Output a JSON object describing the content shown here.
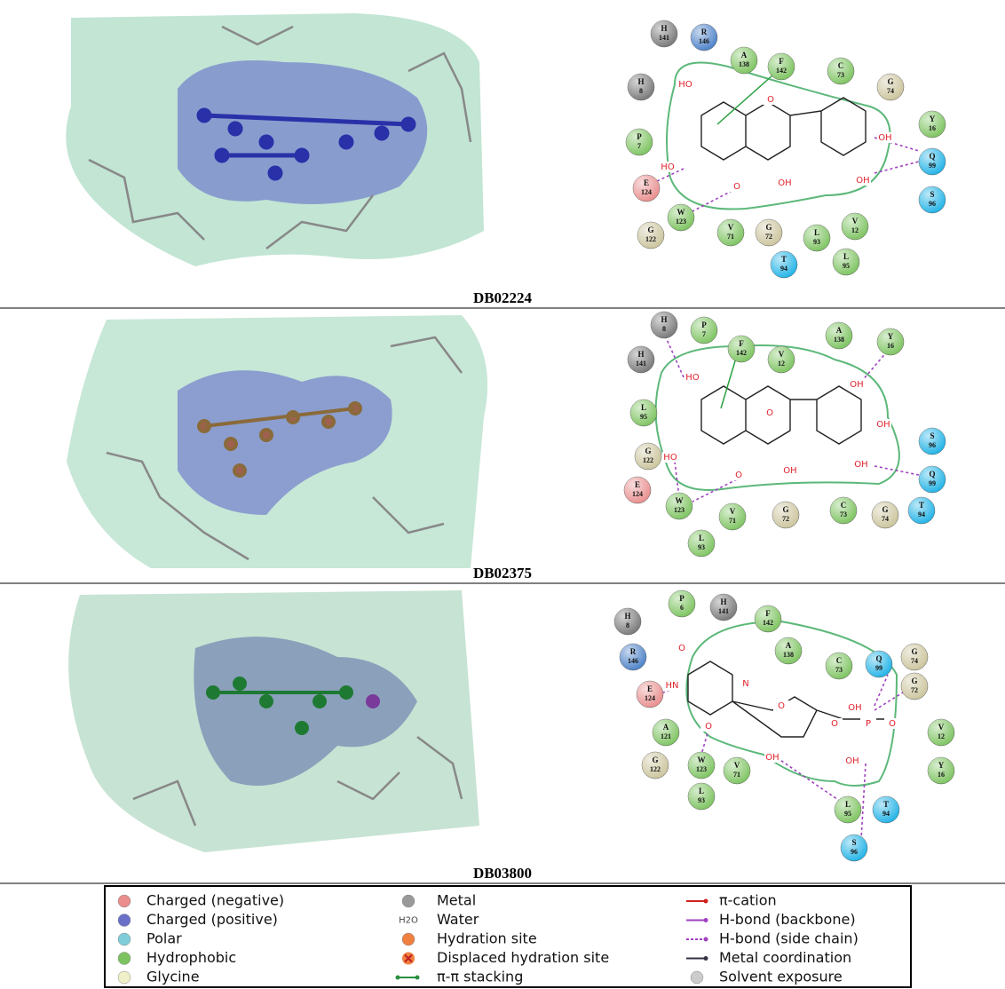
{
  "panels": [
    {
      "caption": "DB02224",
      "residues": [
        {
          "code": "H",
          "num": "141",
          "color": "#777777"
        },
        {
          "code": "R",
          "num": "146",
          "color": "#4a80c8"
        },
        {
          "code": "A",
          "num": "138",
          "color": "#7cc35f"
        },
        {
          "code": "F",
          "num": "142",
          "color": "#7cc35f"
        },
        {
          "code": "C",
          "num": "73",
          "color": "#7cc35f"
        },
        {
          "code": "G",
          "num": "74",
          "color": "#cbc49c"
        },
        {
          "code": "H",
          "num": "8",
          "color": "#777777"
        },
        {
          "code": "Y",
          "num": "16",
          "color": "#7cc35f"
        },
        {
          "code": "P",
          "num": "7",
          "color": "#7cc35f"
        },
        {
          "code": "Q",
          "num": "99",
          "color": "#1fb2e6"
        },
        {
          "code": "E",
          "num": "124",
          "color": "#e98d8d"
        },
        {
          "code": "S",
          "num": "96",
          "color": "#1fb2e6"
        },
        {
          "code": "W",
          "num": "123",
          "color": "#7cc35f"
        },
        {
          "code": "G",
          "num": "122",
          "color": "#cbc49c"
        },
        {
          "code": "V",
          "num": "71",
          "color": "#7cc35f"
        },
        {
          "code": "G",
          "num": "72",
          "color": "#cbc49c"
        },
        {
          "code": "L",
          "num": "93",
          "color": "#7cc35f"
        },
        {
          "code": "V",
          "num": "12",
          "color": "#7cc35f"
        },
        {
          "code": "T",
          "num": "94",
          "color": "#1fb2e6"
        },
        {
          "code": "L",
          "num": "95",
          "color": "#7cc35f"
        }
      ],
      "atoms": [
        "HO",
        "O",
        "HO",
        "O",
        "OH",
        "OH",
        "OH"
      ]
    },
    {
      "caption": "DB02375",
      "residues": [
        {
          "code": "H",
          "num": "8",
          "color": "#777777"
        },
        {
          "code": "P",
          "num": "7",
          "color": "#7cc35f"
        },
        {
          "code": "F",
          "num": "142",
          "color": "#7cc35f"
        },
        {
          "code": "V",
          "num": "12",
          "color": "#7cc35f"
        },
        {
          "code": "A",
          "num": "138",
          "color": "#7cc35f"
        },
        {
          "code": "Y",
          "num": "16",
          "color": "#7cc35f"
        },
        {
          "code": "H",
          "num": "141",
          "color": "#777777"
        },
        {
          "code": "L",
          "num": "95",
          "color": "#7cc35f"
        },
        {
          "code": "G",
          "num": "122",
          "color": "#cbc49c"
        },
        {
          "code": "S",
          "num": "96",
          "color": "#1fb2e6"
        },
        {
          "code": "E",
          "num": "124",
          "color": "#e98d8d"
        },
        {
          "code": "Q",
          "num": "99",
          "color": "#1fb2e6"
        },
        {
          "code": "W",
          "num": "123",
          "color": "#7cc35f"
        },
        {
          "code": "V",
          "num": "71",
          "color": "#7cc35f"
        },
        {
          "code": "G",
          "num": "72",
          "color": "#cbc49c"
        },
        {
          "code": "C",
          "num": "73",
          "color": "#7cc35f"
        },
        {
          "code": "G",
          "num": "74",
          "color": "#cbc49c"
        },
        {
          "code": "T",
          "num": "94",
          "color": "#1fb2e6"
        },
        {
          "code": "L",
          "num": "93",
          "color": "#7cc35f"
        }
      ],
      "atoms": [
        "HO",
        "O",
        "HO",
        "O",
        "OH",
        "OH",
        "OH",
        "OH"
      ]
    },
    {
      "caption": "DB03800",
      "residues": [
        {
          "code": "P",
          "num": "6",
          "color": "#7cc35f"
        },
        {
          "code": "H",
          "num": "141",
          "color": "#777777"
        },
        {
          "code": "H",
          "num": "8",
          "color": "#777777"
        },
        {
          "code": "F",
          "num": "142",
          "color": "#7cc35f"
        },
        {
          "code": "A",
          "num": "138",
          "color": "#7cc35f"
        },
        {
          "code": "R",
          "num": "146",
          "color": "#4a80c8"
        },
        {
          "code": "C",
          "num": "73",
          "color": "#7cc35f"
        },
        {
          "code": "Q",
          "num": "99",
          "color": "#1fb2e6"
        },
        {
          "code": "G",
          "num": "74",
          "color": "#cbc49c"
        },
        {
          "code": "G",
          "num": "72",
          "color": "#cbc49c"
        },
        {
          "code": "E",
          "num": "124",
          "color": "#e98d8d"
        },
        {
          "code": "A",
          "num": "121",
          "color": "#7cc35f"
        },
        {
          "code": "V",
          "num": "12",
          "color": "#7cc35f"
        },
        {
          "code": "G",
          "num": "122",
          "color": "#cbc49c"
        },
        {
          "code": "W",
          "num": "123",
          "color": "#7cc35f"
        },
        {
          "code": "V",
          "num": "71",
          "color": "#7cc35f"
        },
        {
          "code": "Y",
          "num": "16",
          "color": "#7cc35f"
        },
        {
          "code": "L",
          "num": "93",
          "color": "#7cc35f"
        },
        {
          "code": "L",
          "num": "95",
          "color": "#7cc35f"
        },
        {
          "code": "T",
          "num": "94",
          "color": "#1fb2e6"
        },
        {
          "code": "S",
          "num": "96",
          "color": "#1fb2e6"
        }
      ],
      "atoms": [
        "O",
        "HN",
        "N",
        "O",
        "O",
        "O",
        "P",
        "O",
        "OH",
        "OH",
        "OH"
      ]
    }
  ],
  "legend": {
    "entries": [
      "Charged (negative)",
      "Charged (positive)",
      "Polar",
      "Hydrophobic",
      "Glycine",
      "Metal",
      "Water",
      "Hydration site",
      "Displaced hydration site",
      "π-π stacking",
      "π-cation",
      "H-bond (backbone)",
      "H-bond (side chain)",
      "Metal coordination",
      "Solvent exposure"
    ],
    "water_icon": "H2O"
  }
}
